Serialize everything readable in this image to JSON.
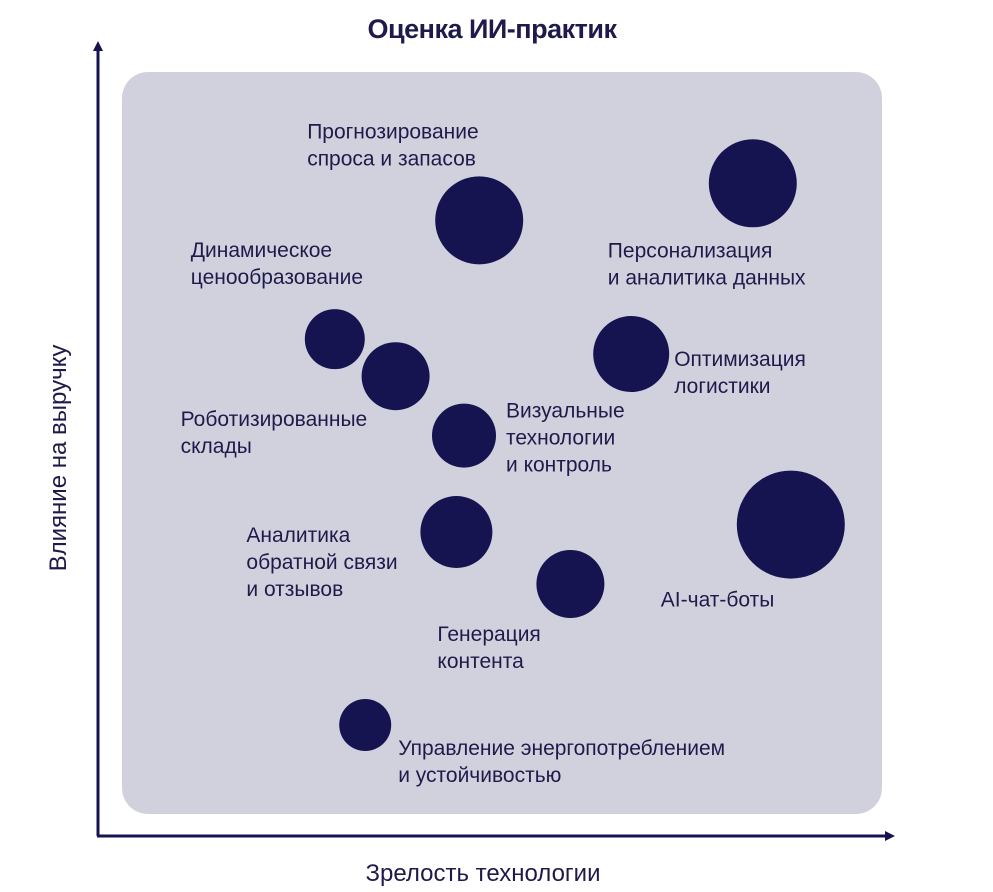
{
  "chart_data": {
    "type": "scatter",
    "title": "Оценка ИИ-практик",
    "xlabel": "Зрелость технологии",
    "ylabel": "Влияние на выручку",
    "colors": {
      "panel": "#d1d1de",
      "bubble": "#161450",
      "axis": "#161450",
      "text": "#1e1b4b"
    },
    "points": [
      {
        "name": "Прогнозирование спроса и запасов",
        "lines": [
          "Прогнозирование",
          "спроса и запасов"
        ],
        "x": 0.47,
        "y": 0.8,
        "size": 0.75
      },
      {
        "name": "Персонализация и аналитика данных",
        "lines": [
          "Персонализация",
          "и аналитика данных"
        ],
        "x": 0.83,
        "y": 0.85,
        "size": 0.75
      },
      {
        "name": "Динамическое ценообразование",
        "lines": [
          "Динамическое",
          "ценообразование"
        ],
        "x": 0.28,
        "y": 0.64,
        "size": 0.4
      },
      {
        "name": "Роботизированные склады",
        "lines": [
          "Роботизированные",
          "склады"
        ],
        "x": 0.36,
        "y": 0.59,
        "size": 0.5
      },
      {
        "name": "Оптимизация логистики",
        "lines": [
          "Оптимизация",
          "логистики"
        ],
        "x": 0.67,
        "y": 0.62,
        "size": 0.6
      },
      {
        "name": "Визуальные технологии и контроль",
        "lines": [
          "Визуальные",
          "технологии",
          "и контроль"
        ],
        "x": 0.45,
        "y": 0.51,
        "size": 0.45
      },
      {
        "name": "Аналитика обратной связи и отзывов",
        "lines": [
          "Аналитика",
          "обратной связи",
          "и отзывов"
        ],
        "x": 0.44,
        "y": 0.38,
        "size": 0.55
      },
      {
        "name": "AI-чат-боты",
        "lines": [
          "AI-чат-боты"
        ],
        "x": 0.88,
        "y": 0.39,
        "size": 1.0
      },
      {
        "name": "Генерация контента",
        "lines": [
          "Генерация",
          "контента"
        ],
        "x": 0.59,
        "y": 0.31,
        "size": 0.5
      },
      {
        "name": "Управление энергопотреблением и устойчивостью",
        "lines": [
          "Управление энергопотреблением",
          "и устойчивостью"
        ],
        "x": 0.32,
        "y": 0.12,
        "size": 0.3
      }
    ]
  }
}
